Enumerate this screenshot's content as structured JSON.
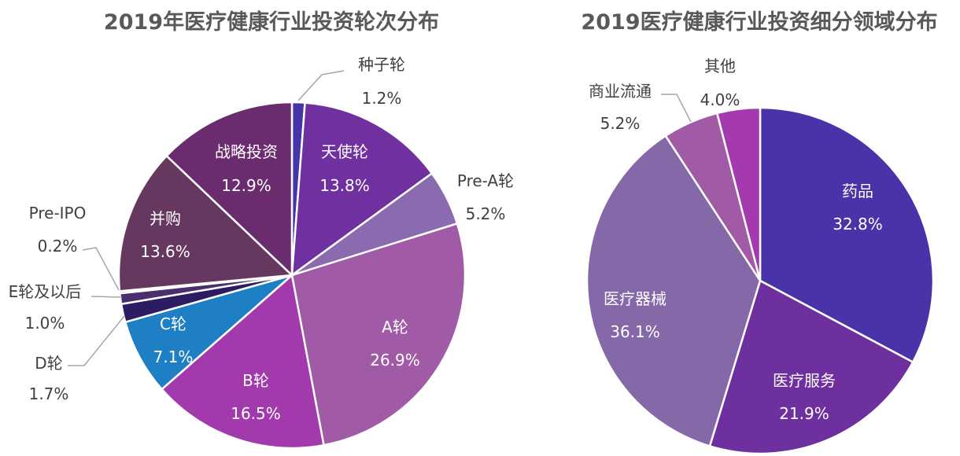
{
  "chart_data": [
    {
      "type": "pie",
      "title": "2019年医疗健康行业投资轮次分布",
      "slices": [
        {
          "label": "种子轮",
          "value": 1.2,
          "value_label": "1.2%",
          "color": "#4535A8"
        },
        {
          "label": "天使轮",
          "value": 13.8,
          "value_label": "13.8%",
          "color": "#7030A0"
        },
        {
          "label": "Pre-A轮",
          "value": 5.2,
          "value_label": "5.2%",
          "color": "#8A6BB0"
        },
        {
          "label": "A轮",
          "value": 26.9,
          "value_label": "26.9%",
          "color": "#A05AA6"
        },
        {
          "label": "B轮",
          "value": 16.5,
          "value_label": "16.5%",
          "color": "#A23AAE"
        },
        {
          "label": "C轮",
          "value": 7.1,
          "value_label": "7.1%",
          "color": "#1F7FC4"
        },
        {
          "label": "D轮",
          "value": 1.7,
          "value_label": "1.7%",
          "color": "#2B1C63"
        },
        {
          "label": "E轮及以后",
          "value": 1.0,
          "value_label": "1.0%",
          "color": "#4A2E6E"
        },
        {
          "label": "Pre-IPO",
          "value": 0.2,
          "value_label": "0.2%",
          "color": "#7B4B7E"
        },
        {
          "label": "并购",
          "value": 13.6,
          "value_label": "13.6%",
          "color": "#66385F"
        },
        {
          "label": "战略投资",
          "value": 12.9,
          "value_label": "12.9%",
          "color": "#6A2C6E"
        }
      ]
    },
    {
      "type": "pie",
      "title": "2019医疗健康行业投资细分领域分布",
      "slices": [
        {
          "label": "药品",
          "value": 32.8,
          "value_label": "32.8%",
          "color": "#4A32A8"
        },
        {
          "label": "医疗服务",
          "value": 21.9,
          "value_label": "21.9%",
          "color": "#6E2F9F"
        },
        {
          "label": "医疗器械",
          "value": 36.1,
          "value_label": "36.1%",
          "color": "#8468A8"
        },
        {
          "label": "商业流通",
          "value": 5.2,
          "value_label": "5.2%",
          "color": "#A05AA6"
        },
        {
          "label": "其他",
          "value": 4.0,
          "value_label": "4.0%",
          "color": "#A43AAE"
        }
      ]
    }
  ]
}
